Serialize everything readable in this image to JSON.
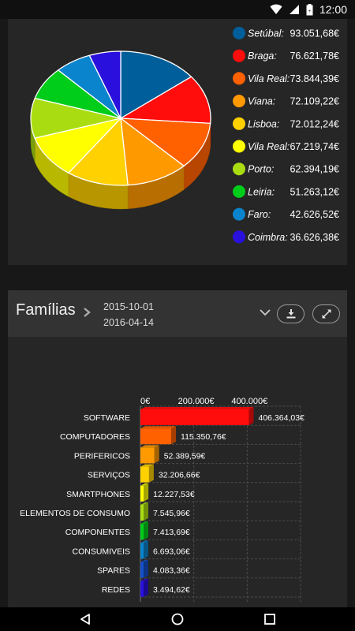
{
  "status_bar": {
    "time": "12:00"
  },
  "pie_card": {
    "chart_data": {
      "type": "pie",
      "series": [
        {
          "name": "Setúbal:",
          "value_label": "93.051,68€",
          "value": 93051.68,
          "color": "#005f9a"
        },
        {
          "name": "Braga:",
          "value_label": "76.621,78€",
          "value": 76621.78,
          "color": "#ff0c0c"
        },
        {
          "name": "Vila Real:",
          "value_label": "73.844,39€",
          "value": 73844.39,
          "color": "#ff6000"
        },
        {
          "name": "Viana:",
          "value_label": "72.109,22€",
          "value": 72109.22,
          "color": "#ff9900"
        },
        {
          "name": "Lisboa:",
          "value_label": "72.012,24€",
          "value": 72012.24,
          "color": "#ffd100"
        },
        {
          "name": "Vila Real:",
          "value_label": "67.219,74€",
          "value": 67219.74,
          "color": "#ffff00"
        },
        {
          "name": "Porto:",
          "value_label": "62.394,19€",
          "value": 62394.19,
          "color": "#aadd11"
        },
        {
          "name": "Leiria:",
          "value_label": "51.263,12€",
          "value": 51263.12,
          "color": "#00cc1a"
        },
        {
          "name": "Faro:",
          "value_label": "42.626,52€",
          "value": 42626.52,
          "color": "#0a84cc"
        },
        {
          "name": "Coimbra:",
          "value_label": "36.626,38€",
          "value": 36626.38,
          "color": "#2a10dd"
        }
      ],
      "legend_position": "right"
    }
  },
  "bar_card": {
    "title": "Famílias",
    "date_from": "2015-10-01",
    "date_to": "2016-04-14",
    "chart_data": {
      "type": "bar",
      "orientation": "horizontal",
      "categories": [
        "SOFTWARE",
        "COMPUTADORES",
        "PERIFERICOS",
        "SERVIÇOS",
        "SMARTPHONES",
        "ELEMENTOS DE CONSUMO",
        "COMPONENTES",
        "CONSUMIVEIS",
        "SPARES",
        "REDES"
      ],
      "values": [
        406364.03,
        115350.76,
        52389.59,
        32206.66,
        12227.53,
        7545.96,
        7413.69,
        6693.06,
        4083.36,
        3494.62
      ],
      "value_labels": [
        "406.364,03€",
        "115.350,76€",
        "52.389,59€",
        "32.206,66€",
        "12.227,53€",
        "7.545,96€",
        "7.413,69€",
        "6.693,06€",
        "4.083,36€",
        "3.494,62€"
      ],
      "colors": [
        "#ff0c0c",
        "#ff6000",
        "#ff9900",
        "#ffd100",
        "#ffff00",
        "#aadd11",
        "#00cc1a",
        "#0a84cc",
        "#1450c8",
        "#2a10dd"
      ],
      "x_ticks": [
        0,
        200000,
        400000
      ],
      "x_tick_labels": [
        "0€",
        "200.000€",
        "400.000€"
      ],
      "xlim": [
        0,
        600000
      ],
      "grid": true
    }
  }
}
